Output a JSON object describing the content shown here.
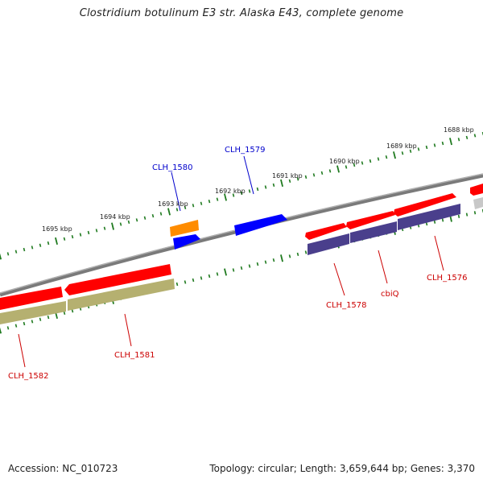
{
  "title": "Clostridium botulinum E3 str. Alaska E43, complete genome",
  "footer": {
    "accession": "Accession: NC_010723",
    "summary": "Topology: circular; Length: 3,659,644 bp; Genes: 3,370"
  },
  "colors": {
    "backbone": "#808080",
    "tick": "#1f7a1f",
    "forward_gene": "#ff0000",
    "reverse_cds_olive": "#b5b070",
    "reverse_cds_purple": "#4a3f8c",
    "forward_blue": "#0000ff",
    "forward_orange": "#ff8c00",
    "grey_feature": "#c8c8c8",
    "label_red": "#cc0000",
    "label_blue": "#0000cc"
  },
  "scale": {
    "unit": "kbp",
    "ticks": [
      {
        "label": "1688 kbp"
      },
      {
        "label": "1689 kbp"
      },
      {
        "label": "1690 kbp"
      },
      {
        "label": "1691 kbp"
      },
      {
        "label": "1692 kbp"
      },
      {
        "label": "1693 kbp"
      },
      {
        "label": "1694 kbp"
      },
      {
        "label": "1695 kbp"
      }
    ]
  },
  "genes": [
    {
      "name": "CLH_1576",
      "color": "label_red"
    },
    {
      "name": "cbiQ",
      "color": "label_red"
    },
    {
      "name": "CLH_1578",
      "color": "label_red"
    },
    {
      "name": "CLH_1579",
      "color": "label_blue"
    },
    {
      "name": "CLH_1580",
      "color": "label_blue"
    },
    {
      "name": "CLH_1581",
      "color": "label_red"
    },
    {
      "name": "CLH_1582",
      "color": "label_red"
    }
  ]
}
